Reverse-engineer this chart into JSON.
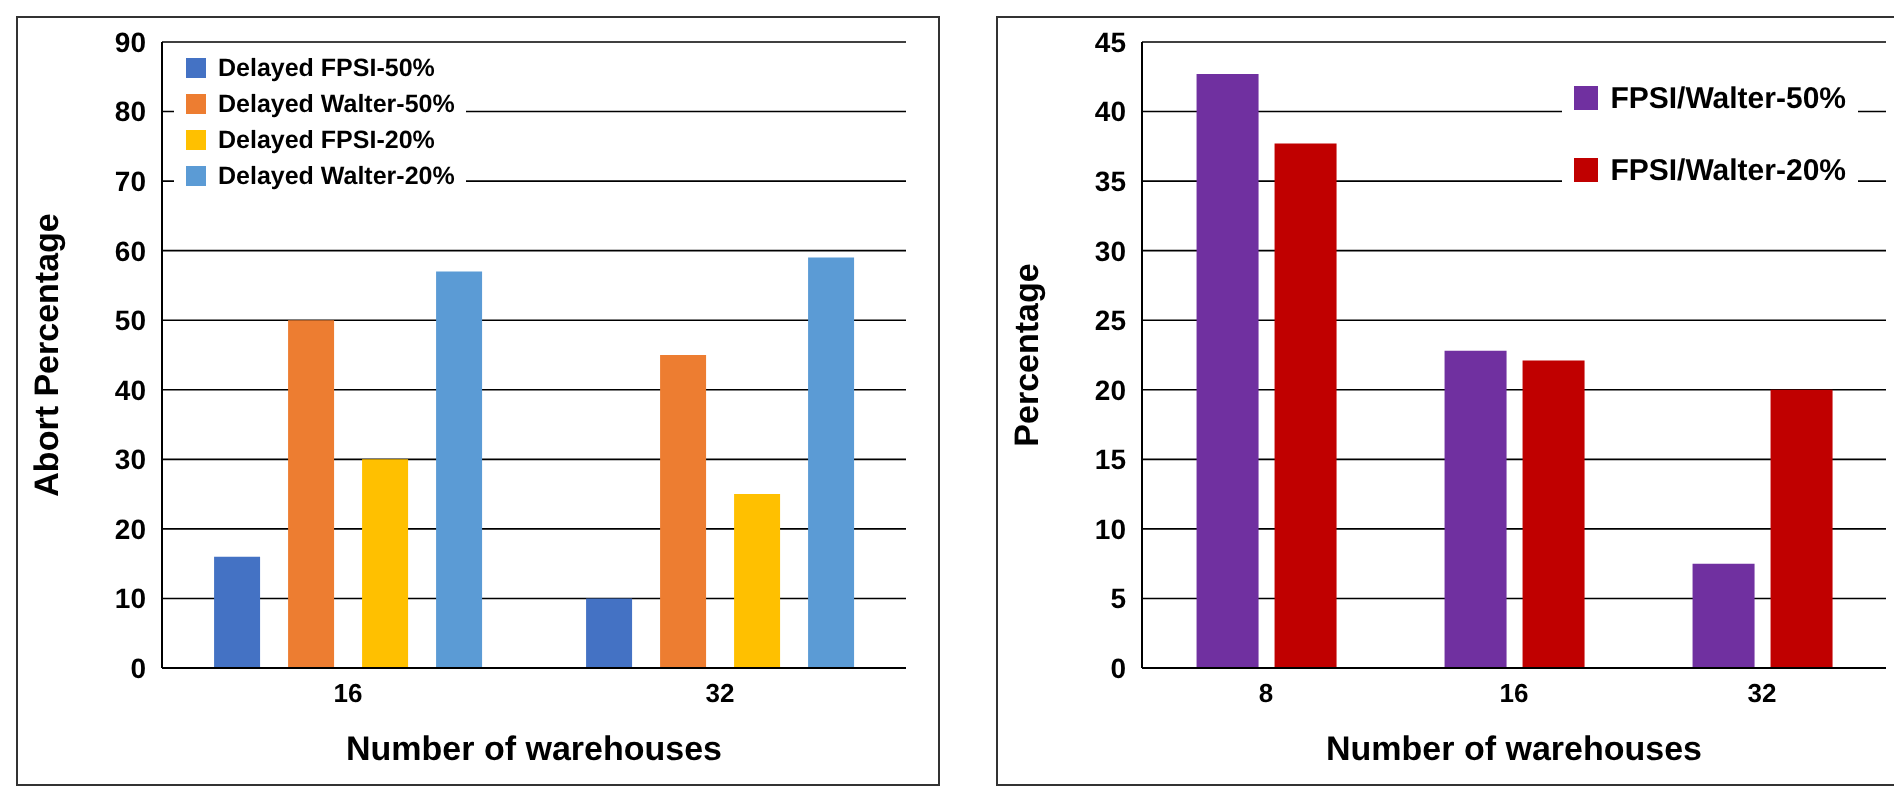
{
  "chart_data": [
    {
      "type": "bar",
      "xlabel": "Number of warehouses",
      "ylabel": "Abort Percentage",
      "categories": [
        "16",
        "32"
      ],
      "series": [
        {
          "name": "Delayed FPSI-50%",
          "color": "#4472c4",
          "values": [
            16,
            10
          ]
        },
        {
          "name": "Delayed Walter-50%",
          "color": "#ed7d31",
          "values": [
            50,
            45
          ]
        },
        {
          "name": "Delayed FPSI-20%",
          "color": "#ffc000",
          "values": [
            30,
            25
          ]
        },
        {
          "name": "Delayed Walter-20%",
          "color": "#5b9bd5",
          "values": [
            57,
            59
          ]
        }
      ],
      "ylim": [
        0,
        90
      ],
      "yticks": [
        0,
        10,
        20,
        30,
        40,
        50,
        60,
        70,
        80,
        90
      ],
      "grid": "y",
      "legend": "top left"
    },
    {
      "type": "bar",
      "xlabel": "Number of warehouses",
      "ylabel": "Percentage",
      "categories": [
        "8",
        "16",
        "32"
      ],
      "series": [
        {
          "name": "FPSI/Walter-50%",
          "color": "#7030a0",
          "values": [
            42.7,
            22.8,
            7.5
          ]
        },
        {
          "name": "FPSI/Walter-20%",
          "color": "#c00000",
          "values": [
            37.7,
            22.1,
            20
          ]
        }
      ],
      "ylim": [
        0,
        45
      ],
      "yticks": [
        0,
        5,
        10,
        15,
        20,
        25,
        30,
        35,
        40,
        45
      ],
      "grid": "y",
      "legend": "top right"
    }
  ]
}
